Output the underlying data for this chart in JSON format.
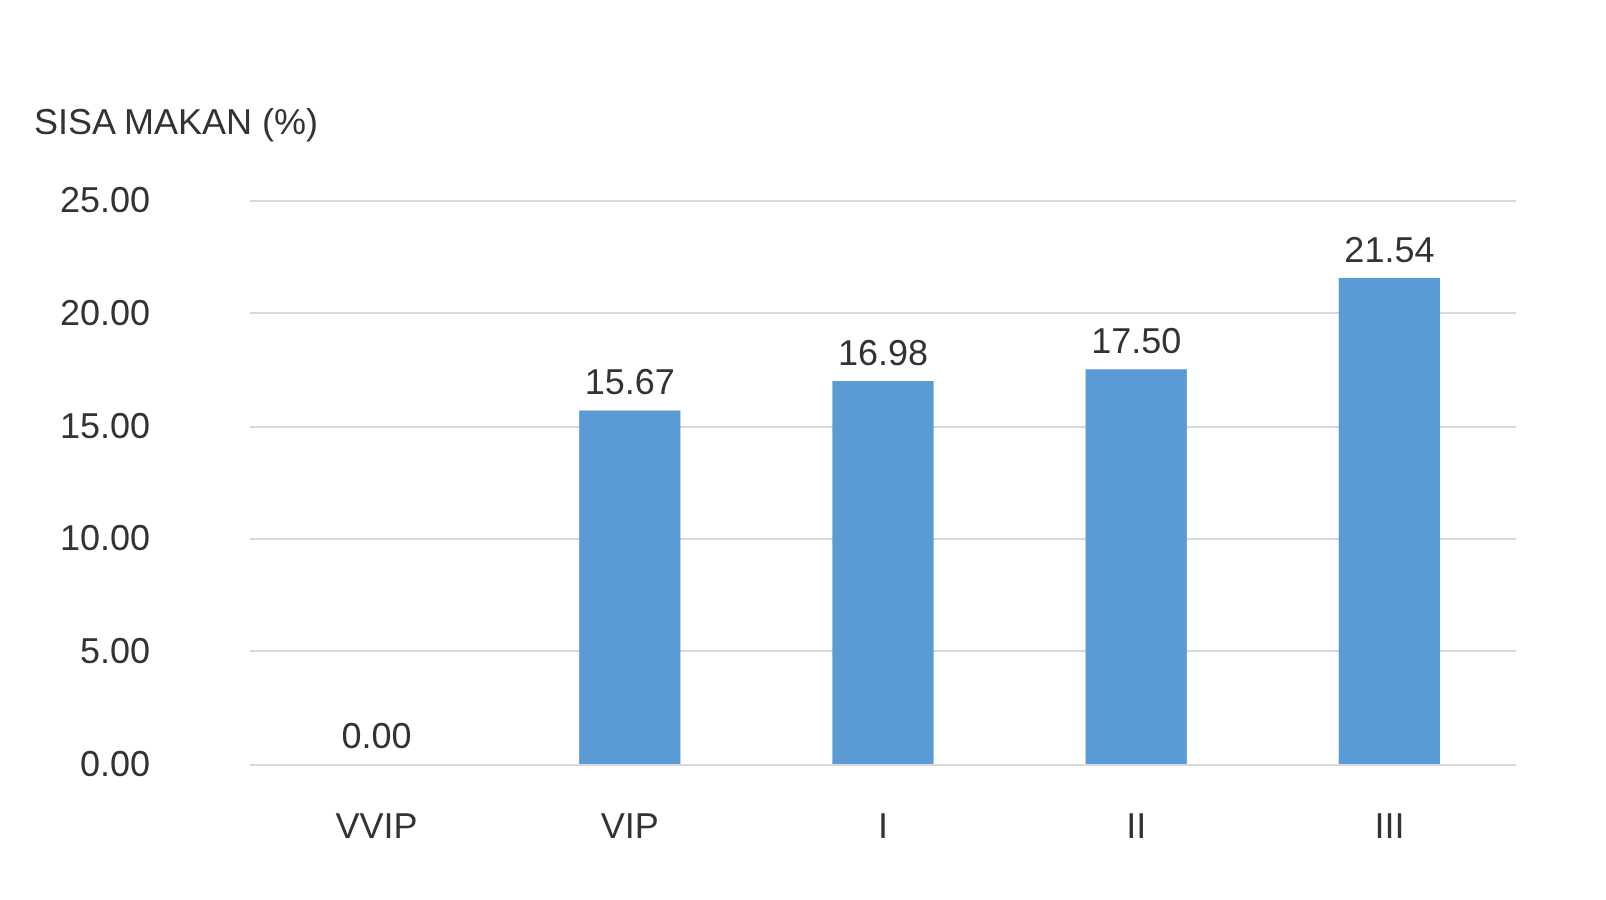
{
  "chart_data": {
    "type": "bar",
    "ylabel": "SISA MAKAN (%)",
    "categories": [
      "VVIP",
      "VIP",
      "I",
      "II",
      "III"
    ],
    "values": [
      0,
      15.67,
      16.98,
      17.5,
      21.54
    ],
    "value_labels": [
      "0.00",
      "15.67",
      "16.98",
      "17.50",
      "21.54"
    ],
    "color": "#5b9bd5",
    "ylim": [
      0,
      25
    ],
    "yticks": [
      {
        "value": 0,
        "label": "0.00"
      },
      {
        "value": 5,
        "label": "5.00"
      },
      {
        "value": 10,
        "label": "10.00"
      },
      {
        "value": 15,
        "label": "15.00"
      },
      {
        "value": 20,
        "label": "20.00"
      },
      {
        "value": 25,
        "label": "25.00"
      }
    ],
    "grid": "y"
  }
}
